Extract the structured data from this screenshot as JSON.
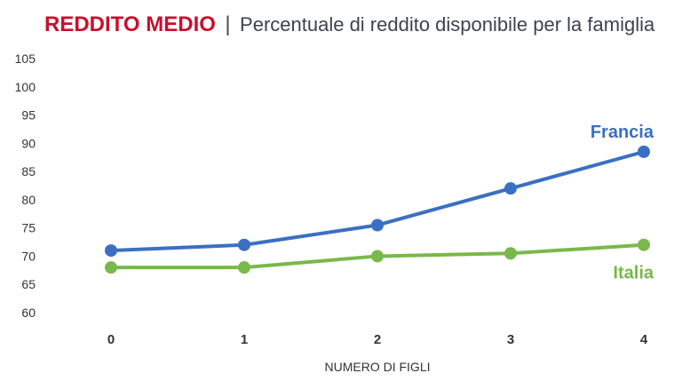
{
  "title": {
    "main": "REDDITO MEDIO",
    "separator": "|",
    "subtitle": "Percentuale di reddito disponibile per la famiglia"
  },
  "colors": {
    "title_accent": "#c8102e",
    "francia": "#3a6fc4",
    "italia": "#79b84a"
  },
  "chart_data": {
    "type": "line",
    "title": "REDDITO MEDIO | Percentuale di reddito disponibile per la famiglia",
    "xlabel": "NUMERO DI FIGLI",
    "ylabel": "",
    "x": [
      0,
      1,
      2,
      3,
      4
    ],
    "x_tick_labels": [
      "0",
      "1",
      "2",
      "3",
      "4"
    ],
    "ylim": [
      60,
      105
    ],
    "y_ticks": [
      60,
      65,
      70,
      75,
      80,
      85,
      90,
      95,
      100,
      105
    ],
    "grid": false,
    "series": [
      {
        "name": "Francia",
        "color": "#3a6fc4",
        "values": [
          71,
          72,
          75.5,
          82,
          88.5
        ]
      },
      {
        "name": "Italia",
        "color": "#79b84a",
        "values": [
          68,
          68,
          70,
          70.5,
          72
        ]
      }
    ]
  }
}
